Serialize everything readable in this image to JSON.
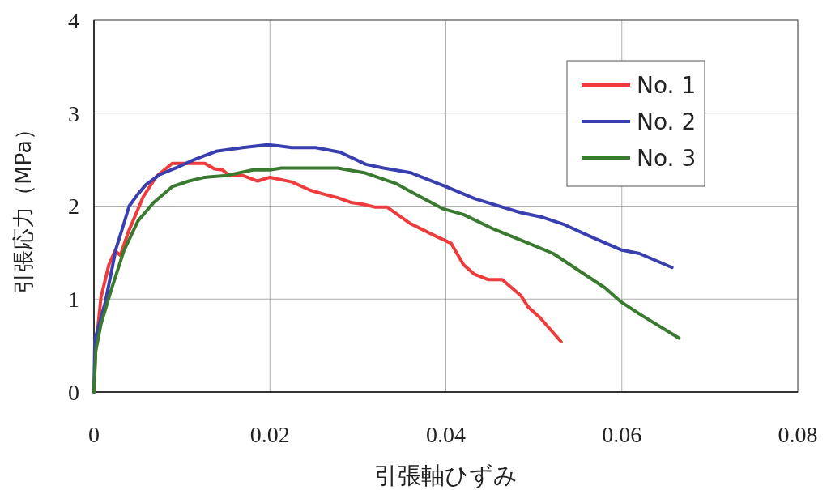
{
  "chart_data": {
    "type": "line",
    "xlabel": "引張軸ひずみ",
    "ylabel": "引張応力（MPa）",
    "xlim": [
      0,
      0.08
    ],
    "ylim": [
      0,
      4
    ],
    "xticks": [
      0,
      0.02,
      0.04,
      0.06,
      0.08
    ],
    "yticks": [
      0,
      1,
      2,
      3,
      4
    ],
    "grid": true,
    "legend": "top right",
    "marker": "none",
    "line_style": "solid",
    "series": [
      {
        "name": "No. 1",
        "color": "#ee3b3b",
        "x": [
          0,
          0.0002,
          0.0008,
          0.0017,
          0.0024,
          0.003,
          0.0039,
          0.0056,
          0.0071,
          0.0089,
          0.0126,
          0.0137,
          0.0146,
          0.0154,
          0.0169,
          0.0186,
          0.02,
          0.0225,
          0.0246,
          0.0261,
          0.0277,
          0.0292,
          0.0306,
          0.0319,
          0.0333,
          0.036,
          0.039,
          0.0406,
          0.042,
          0.0432,
          0.0448,
          0.0464,
          0.0485,
          0.0494,
          0.0507,
          0.0531
        ],
        "values": [
          0,
          0.47,
          1.02,
          1.37,
          1.52,
          1.47,
          1.72,
          2.1,
          2.32,
          2.46,
          2.46,
          2.4,
          2.39,
          2.33,
          2.33,
          2.27,
          2.31,
          2.26,
          2.17,
          2.13,
          2.09,
          2.04,
          2.02,
          1.99,
          1.99,
          1.81,
          1.67,
          1.6,
          1.37,
          1.27,
          1.21,
          1.21,
          1.04,
          0.91,
          0.8,
          0.54
        ]
      },
      {
        "name": "No. 2",
        "color": "#3a3fb0",
        "x": [
          0,
          0.0001,
          0.0013,
          0.0025,
          0.0033,
          0.004,
          0.005,
          0.0059,
          0.0075,
          0.0093,
          0.0114,
          0.0139,
          0.0169,
          0.0197,
          0.0209,
          0.0225,
          0.0252,
          0.028,
          0.0309,
          0.0329,
          0.036,
          0.04,
          0.0433,
          0.0485,
          0.051,
          0.0535,
          0.0565,
          0.0599,
          0.062,
          0.0657
        ],
        "values": [
          0,
          0.56,
          0.97,
          1.54,
          1.78,
          2.0,
          2.13,
          2.23,
          2.34,
          2.41,
          2.5,
          2.59,
          2.63,
          2.66,
          2.65,
          2.63,
          2.63,
          2.58,
          2.45,
          2.41,
          2.36,
          2.21,
          2.08,
          1.93,
          1.88,
          1.8,
          1.67,
          1.53,
          1.49,
          1.34
        ]
      },
      {
        "name": "No. 3",
        "color": "#3a7a30",
        "x": [
          0,
          0.0002,
          0.0008,
          0.0019,
          0.0034,
          0.005,
          0.0068,
          0.0089,
          0.0108,
          0.0126,
          0.0151,
          0.0181,
          0.02,
          0.0213,
          0.0277,
          0.0307,
          0.0344,
          0.0365,
          0.0397,
          0.042,
          0.0455,
          0.0494,
          0.0522,
          0.0549,
          0.0581,
          0.0599,
          0.062,
          0.0665
        ],
        "values": [
          0,
          0.44,
          0.73,
          1.08,
          1.52,
          1.84,
          2.04,
          2.21,
          2.27,
          2.31,
          2.33,
          2.39,
          2.39,
          2.41,
          2.41,
          2.36,
          2.24,
          2.13,
          1.97,
          1.91,
          1.75,
          1.6,
          1.49,
          1.32,
          1.12,
          0.97,
          0.84,
          0.58
        ]
      }
    ]
  }
}
